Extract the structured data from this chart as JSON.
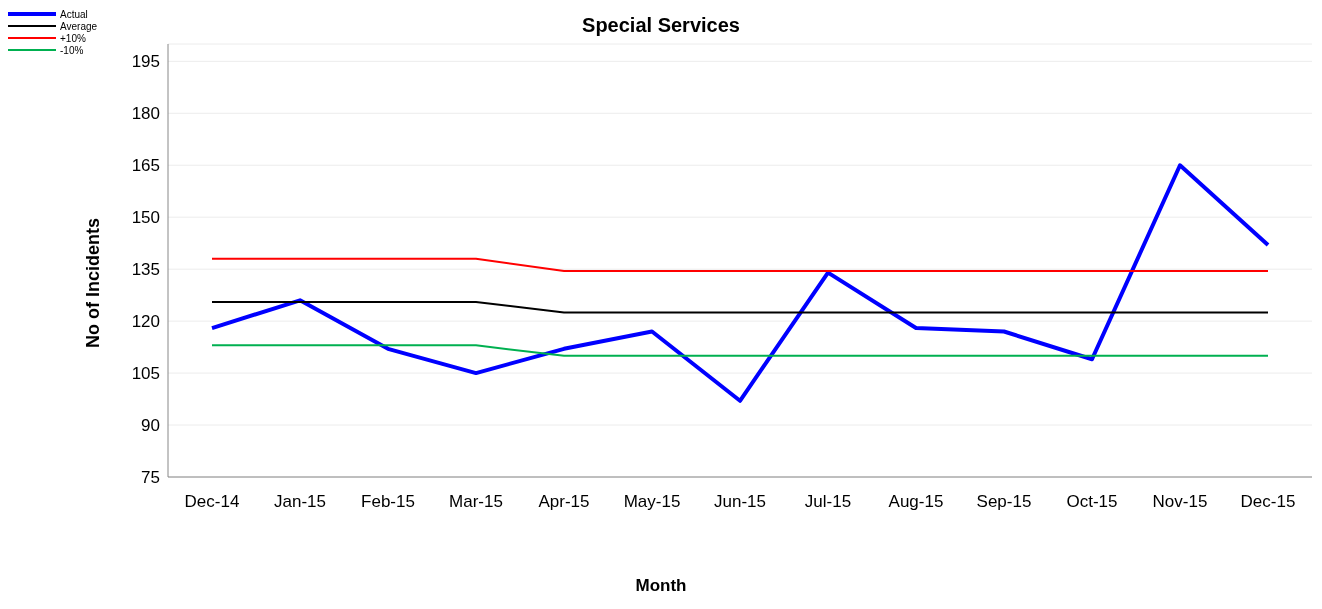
{
  "chart_data": {
    "type": "line",
    "title": "Special Services",
    "xlabel": "Month",
    "ylabel": "No of Incidents",
    "categories": [
      "Dec-14",
      "Jan-15",
      "Feb-15",
      "Mar-15",
      "Apr-15",
      "May-15",
      "Jun-15",
      "Jul-15",
      "Aug-15",
      "Sep-15",
      "Oct-15",
      "Nov-15",
      "Dec-15"
    ],
    "series": [
      {
        "name": "Actual",
        "color": "#0000ff",
        "values": [
          118,
          126,
          112,
          105,
          112,
          117,
          97,
          134,
          118,
          117,
          109,
          165,
          142
        ]
      },
      {
        "name": "Average",
        "color": "#000000",
        "values": [
          125.5,
          125.5,
          125.5,
          125.5,
          122.5,
          122.5,
          122.5,
          122.5,
          122.5,
          122.5,
          122.5,
          122.5,
          122.5
        ]
      },
      {
        "name": "+10%",
        "color": "#ff0000",
        "values": [
          138,
          138,
          138,
          138,
          134.5,
          134.5,
          134.5,
          134.5,
          134.5,
          134.5,
          134.5,
          134.5,
          134.5
        ]
      },
      {
        "name": "-10%",
        "color": "#00b050",
        "values": [
          113,
          113,
          113,
          113,
          110,
          110,
          110,
          110,
          110,
          110,
          110,
          110,
          110
        ]
      }
    ],
    "ylim": [
      75,
      200
    ],
    "yticks": [
      75,
      90,
      105,
      120,
      135,
      150,
      165,
      180,
      195
    ],
    "grid": "y",
    "legend": "top left",
    "marker": "none",
    "line_style": "solid"
  }
}
